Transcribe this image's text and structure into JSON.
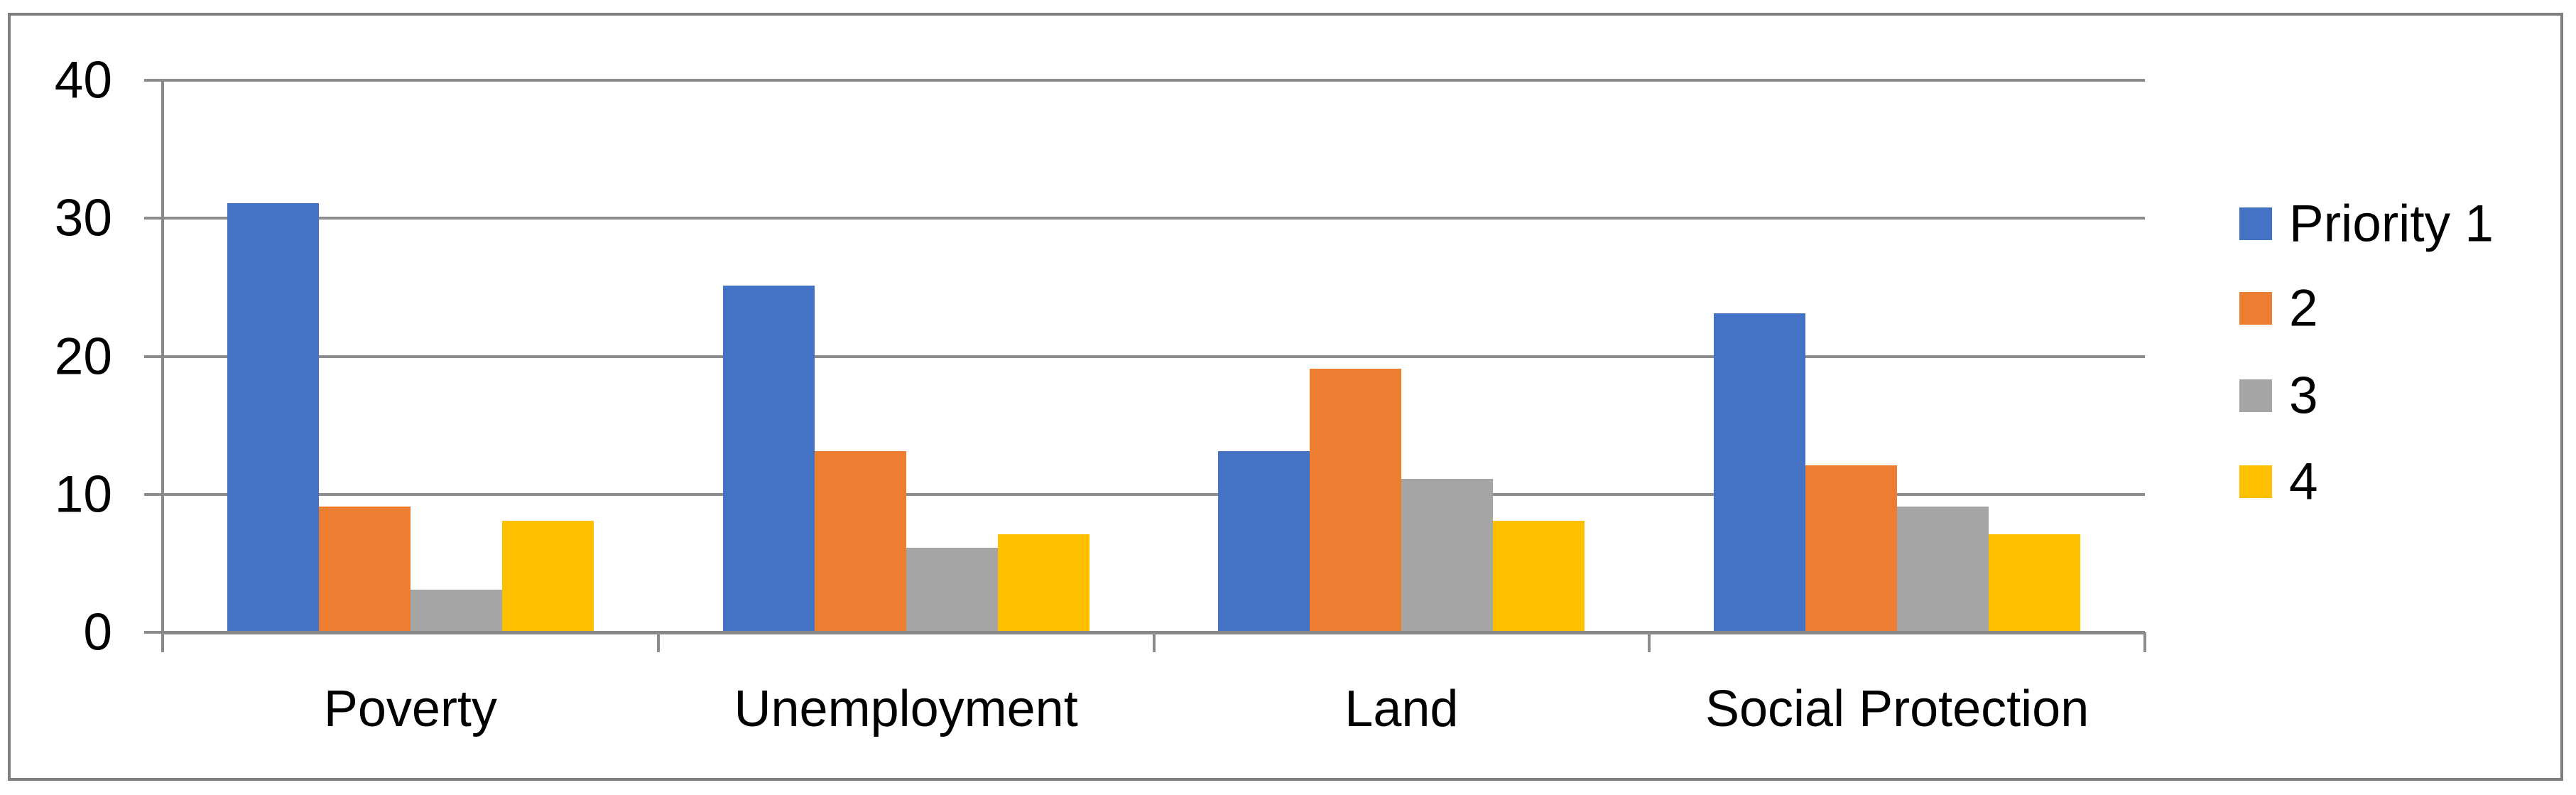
{
  "chart_data": {
    "type": "bar",
    "title": "",
    "categories": [
      "Poverty",
      "Unemployment",
      "Land",
      "Social Protection"
    ],
    "series": [
      {
        "name": "Priority 1",
        "color": "#4472C4",
        "values": [
          31,
          25,
          13,
          23
        ]
      },
      {
        "name": "2",
        "color": "#ED7D31",
        "values": [
          9,
          13,
          19,
          12
        ]
      },
      {
        "name": "3",
        "color": "#A5A5A5",
        "values": [
          3,
          6,
          11,
          9
        ]
      },
      {
        "name": "4",
        "color": "#FFC000",
        "values": [
          8,
          7,
          8,
          7
        ]
      }
    ],
    "y_axis": {
      "min": 0,
      "max": 40,
      "tick_interval": 10,
      "tick_labels": [
        "0",
        "10",
        "20",
        "30",
        "40"
      ]
    },
    "x_axis_label": "",
    "y_axis_label": "",
    "grid": true,
    "legend_position": "right"
  },
  "colors": {
    "background": "#FFFFFF",
    "figure_border": "#7F7F7F",
    "gridline": "#8C8C8C",
    "axis_line": "#898989",
    "text": "#000000"
  }
}
